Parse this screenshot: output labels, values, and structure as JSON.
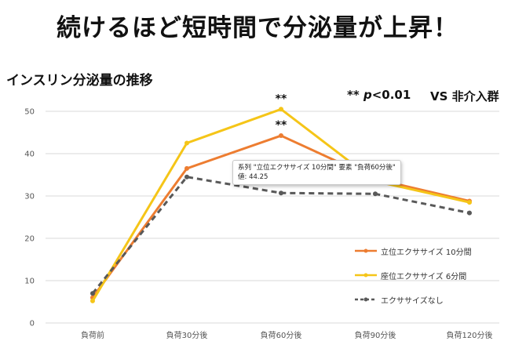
{
  "headline": "続けるほど短時間で分泌量が上昇！",
  "chart_title": "インスリン分泌量の推移",
  "significance": {
    "stars": "**",
    "p_symbol": "p",
    "p_value": "<0.01"
  },
  "comparison": "VS 非介入群",
  "annotations": [
    {
      "text": "**",
      "series": 0,
      "category": 2
    },
    {
      "text": "**",
      "series": 1,
      "category": 2
    }
  ],
  "tooltip": {
    "line1": "系列 \"立位エクササイズ 10分間\" 要素 \"負荷60分後\"",
    "line2": "値: 44.25"
  },
  "chart_data": {
    "type": "line",
    "title": "インスリン分泌量の推移",
    "xlabel": "",
    "ylabel": "",
    "categories": [
      "負荷前",
      "負荷30分後",
      "負荷60分後",
      "負荷90分後",
      "負荷120分後"
    ],
    "ylim": [
      0,
      50
    ],
    "yticks": [
      "0",
      "10",
      "20",
      "30",
      "40",
      "50"
    ],
    "grid": true,
    "legend_position": "bottom-right",
    "series": [
      {
        "name": "立位エクササイズ 10分間",
        "color": "#ED7D31",
        "dash": false,
        "values": [
          6.0,
          36.5,
          44.25,
          34.0,
          28.8
        ]
      },
      {
        "name": "座位エクササイズ 6分間",
        "color": "#F5C518",
        "dash": false,
        "values": [
          5.2,
          42.5,
          50.5,
          33.5,
          28.5
        ]
      },
      {
        "name": "エクササイズなし",
        "color": "#595959",
        "dash": true,
        "values": [
          7.0,
          34.5,
          30.7,
          30.5,
          26.0
        ]
      }
    ]
  }
}
